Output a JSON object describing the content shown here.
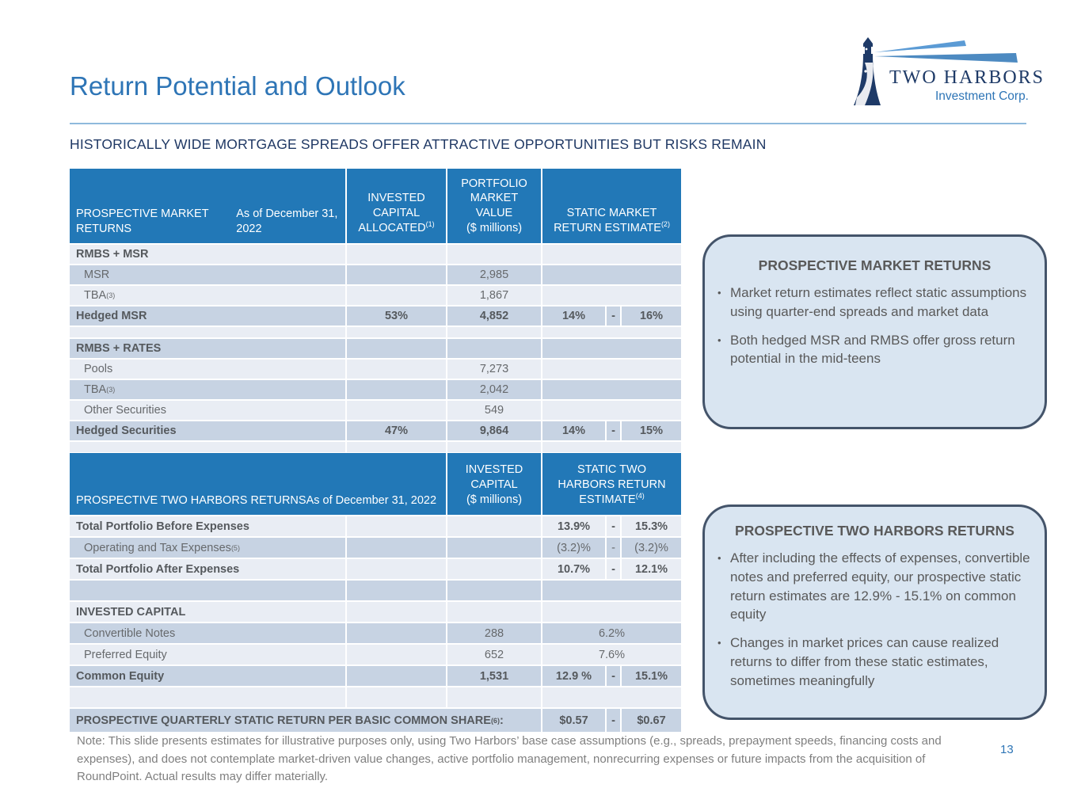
{
  "slide": {
    "title": "Return Potential and Outlook",
    "subtitle": "HISTORICALLY WIDE MORTGAGE SPREADS OFFER ATTRACTIVE OPPORTUNITIES BUT RISKS REMAIN",
    "page_number": "13",
    "note": "Note: This slide presents estimates for illustrative purposes only, using Two Harbors’ base case assumptions (e.g., spreads, prepayment speeds, financing costs and expenses), and does not contemplate market-driven value changes, active portfolio management, nonrecurring expenses or future impacts from the acquisition of RoundPoint. Actual results may differ materially."
  },
  "logo": {
    "name": "TWO HARBORS",
    "subname": "Investment Corp.",
    "icon": "lighthouse-icon"
  },
  "colors": {
    "header_blue": "#2278B7",
    "row_dark": "#C7D3E3",
    "row_light": "#E9EDF4",
    "title_blue": "#2E75B6",
    "subtitle_navy": "#1F3864",
    "box_fill": "#D9E5F1",
    "box_border": "#44546A",
    "text_gray": "#595959",
    "logo_navy": "#1E3A67",
    "beam_blue": "#5B9BD5"
  },
  "market_table": {
    "header": {
      "col1": [
        "PROSPECTIVE MARKET RETURNS",
        "As of December 31, 2022"
      ],
      "col2": {
        "lines": [
          "INVESTED",
          "CAPITAL",
          "ALLOCATED"
        ],
        "sup": "(1)"
      },
      "col3": {
        "lines": [
          "PORTFOLIO",
          "MARKET",
          "VALUE",
          "($ millions)"
        ],
        "sup": ""
      },
      "col4": {
        "lines": [
          "STATIC MARKET",
          "RETURN ESTIMATE"
        ],
        "sup": "(2)"
      }
    },
    "rows": [
      {
        "type": "section",
        "shade": "light",
        "label": "RMBS + MSR"
      },
      {
        "type": "item",
        "shade": "dark",
        "label": "MSR",
        "mv": "2,985"
      },
      {
        "type": "item",
        "shade": "light",
        "label": "TBA",
        "sup": "(3)",
        "mv": "1,867"
      },
      {
        "type": "total",
        "shade": "dark",
        "label": "Hedged MSR",
        "cap": "53%",
        "mv": "4,852",
        "lo": "14%",
        "dash": "-",
        "hi": "16%"
      },
      {
        "type": "spacer",
        "shade": "light"
      },
      {
        "type": "section",
        "shade": "dark",
        "label": "RMBS + RATES"
      },
      {
        "type": "item",
        "shade": "light",
        "label": "Pools",
        "mv": "7,273"
      },
      {
        "type": "item",
        "shade": "dark",
        "label": "TBA",
        "sup": "(3)",
        "mv": "2,042"
      },
      {
        "type": "item",
        "shade": "light",
        "label": "Other Securities",
        "mv": "549"
      },
      {
        "type": "total",
        "shade": "dark",
        "label": "Hedged Securities",
        "cap": "47%",
        "mv": "9,864",
        "lo": "14%",
        "dash": "-",
        "hi": "15%"
      },
      {
        "type": "spacer",
        "shade": "light"
      }
    ]
  },
  "thr_table": {
    "header": {
      "col1": [
        "PROSPECTIVE TWO HARBORS RETURNS",
        "As of December 31, 2022"
      ],
      "col3": {
        "lines": [
          "INVESTED",
          "CAPITAL",
          "($ millions)"
        ],
        "sup": ""
      },
      "col4": {
        "lines": [
          "STATIC TWO",
          "HARBORS RETURN",
          "ESTIMATE"
        ],
        "sup": "(4)"
      }
    },
    "rows": [
      {
        "type": "total",
        "shade": "light",
        "label": "Total Portfolio Before Expenses",
        "lo": "13.9%",
        "dash": "-",
        "hi": "15.3%"
      },
      {
        "type": "item",
        "shade": "dark",
        "label": "Operating and Tax Expenses",
        "sup": "(5)",
        "lo": "(3.2)%",
        "dash": "-",
        "hi": "(3.2)%"
      },
      {
        "type": "total",
        "shade": "light",
        "label": "Total Portfolio After Expenses",
        "lo": "10.7%",
        "dash": "-",
        "hi": "12.1%"
      },
      {
        "type": "spacer1",
        "shade": "dark"
      },
      {
        "type": "section",
        "shade": "light",
        "label": "INVESTED CAPITAL"
      },
      {
        "type": "item",
        "shade": "dark",
        "label": "Convertible Notes",
        "mv": "288",
        "center": "6.2%"
      },
      {
        "type": "item",
        "shade": "light",
        "label": "Preferred Equity",
        "mv": "652",
        "center": "7.6%"
      },
      {
        "type": "total",
        "shade": "dark",
        "label": "Common Equity",
        "mv": "1,531",
        "lo": "12.9 %",
        "dash": "-",
        "hi": "15.1%"
      },
      {
        "type": "spacer2",
        "shade": "light"
      },
      {
        "type": "footer",
        "shade": "dark",
        "label": "PROSPECTIVE QUARTERLY STATIC RETURN PER BASIC COMMON SHARE",
        "sup": "(6)",
        "suffix": ":",
        "lo": "$0.57",
        "dash": "-",
        "hi": "$0.67"
      }
    ]
  },
  "callouts": [
    {
      "title": "PROSPECTIVE MARKET RETURNS",
      "bullets": [
        "Market return estimates reflect static assumptions using quarter-end spreads and market data",
        "Both hedged MSR and RMBS offer gross return potential in the mid-teens"
      ]
    },
    {
      "title": "PROSPECTIVE TWO HARBORS RETURNS",
      "bullets": [
        "After including the effects of expenses, convertible notes and preferred equity, our prospective static return estimates are 12.9% - 15.1% on common equity",
        "Changes in market prices can cause realized returns to differ from these static estimates, sometimes meaningfully"
      ]
    }
  ]
}
